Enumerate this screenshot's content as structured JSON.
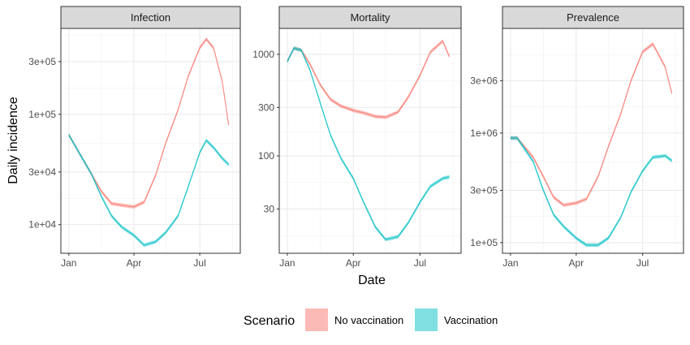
{
  "chart_data": {
    "type": "area",
    "facets": [
      "Infection",
      "Mortality",
      "Prevalence"
    ],
    "xlabel": "Date",
    "ylabel": "Daily incidence",
    "x_ticks": [
      "Jan",
      "Apr",
      "Jul"
    ],
    "y_scale": "log",
    "grid": true,
    "legend": {
      "title": "Scenario",
      "position": "bottom",
      "entries": [
        "No vaccination",
        "Vaccination"
      ]
    },
    "colors": {
      "No vaccination": "#F8766D",
      "Vaccination": "#00BFC4"
    },
    "panels": [
      {
        "name": "Infection",
        "ylim": [
          5500,
          600000
        ],
        "y_ticks": [
          {
            "value": 10000,
            "label": "1e+04"
          },
          {
            "value": 30000,
            "label": "3e+04"
          },
          {
            "value": 100000,
            "label": "1e+05"
          },
          {
            "value": 300000,
            "label": "3e+05"
          }
        ],
        "x": [
          "Jan 1",
          "Jan 15",
          "Feb 1",
          "Feb 15",
          "Mar 1",
          "Mar 15",
          "Apr 1",
          "Apr 15",
          "May 1",
          "May 15",
          "Jun 1",
          "Jun 15",
          "Jul 1",
          "Jul 10",
          "Jul 20",
          "Aug 1",
          "Aug 10"
        ],
        "series": [
          {
            "name": "No vaccination",
            "values": [
              65000,
              45000,
              29000,
              20000,
              15500,
              15000,
              14500,
              16000,
              28000,
              55000,
              110000,
              220000,
              400000,
              480000,
              400000,
              200000,
              80000
            ]
          },
          {
            "name": "Vaccination",
            "values": [
              65000,
              45000,
              29000,
              18000,
              12000,
              9500,
              8000,
              6500,
              7000,
              8500,
              12000,
              22000,
              45000,
              58000,
              50000,
              40000,
              35000
            ]
          }
        ]
      },
      {
        "name": "Mortality",
        "ylim": [
          11,
          1800
        ],
        "y_ticks": [
          {
            "value": 30,
            "label": "30"
          },
          {
            "value": 100,
            "label": "100"
          },
          {
            "value": 300,
            "label": "300"
          },
          {
            "value": 1000,
            "label": "1000"
          }
        ],
        "x": [
          "Jan 1",
          "Jan 10",
          "Jan 20",
          "Feb 1",
          "Feb 15",
          "Mar 1",
          "Mar 15",
          "Apr 1",
          "Apr 15",
          "May 1",
          "May 15",
          "Jun 1",
          "Jun 15",
          "Jul 1",
          "Jul 15",
          "Aug 1",
          "Aug 10"
        ],
        "series": [
          {
            "name": "No vaccination",
            "values": [
              850,
              1150,
              1100,
              800,
              500,
              360,
              310,
              280,
              265,
              245,
              240,
              270,
              380,
              620,
              1050,
              1350,
              950
            ]
          },
          {
            "name": "Vaccination",
            "values": [
              850,
              1150,
              1100,
              700,
              330,
              160,
              95,
              60,
              35,
              20,
              15,
              16,
              22,
              35,
              50,
              60,
              62
            ]
          }
        ]
      },
      {
        "name": "Prevalence",
        "ylim": [
          80000,
          9000000
        ],
        "y_ticks": [
          {
            "value": 100000,
            "label": "1e+05"
          },
          {
            "value": 300000,
            "label": "3e+05"
          },
          {
            "value": 1000000,
            "label": "1e+06"
          },
          {
            "value": 3000000,
            "label": "3e+06"
          }
        ],
        "x": [
          "Jan 1",
          "Jan 10",
          "Feb 1",
          "Feb 15",
          "Mar 1",
          "Mar 15",
          "Apr 1",
          "Apr 15",
          "May 1",
          "May 15",
          "Jun 1",
          "Jun 15",
          "Jul 1",
          "Jul 15",
          "Aug 1",
          "Aug 10"
        ],
        "series": [
          {
            "name": "No vaccination",
            "values": [
              900000,
              900000,
              600000,
              400000,
              260000,
              220000,
              230000,
              250000,
              400000,
              750000,
              1500000,
              3000000,
              5500000,
              6500000,
              4000000,
              2300000
            ]
          },
          {
            "name": "Vaccination",
            "values": [
              900000,
              900000,
              550000,
              300000,
              180000,
              140000,
              110000,
              95000,
              95000,
              110000,
              170000,
              290000,
              450000,
              600000,
              620000,
              560000
            ]
          }
        ]
      }
    ]
  }
}
